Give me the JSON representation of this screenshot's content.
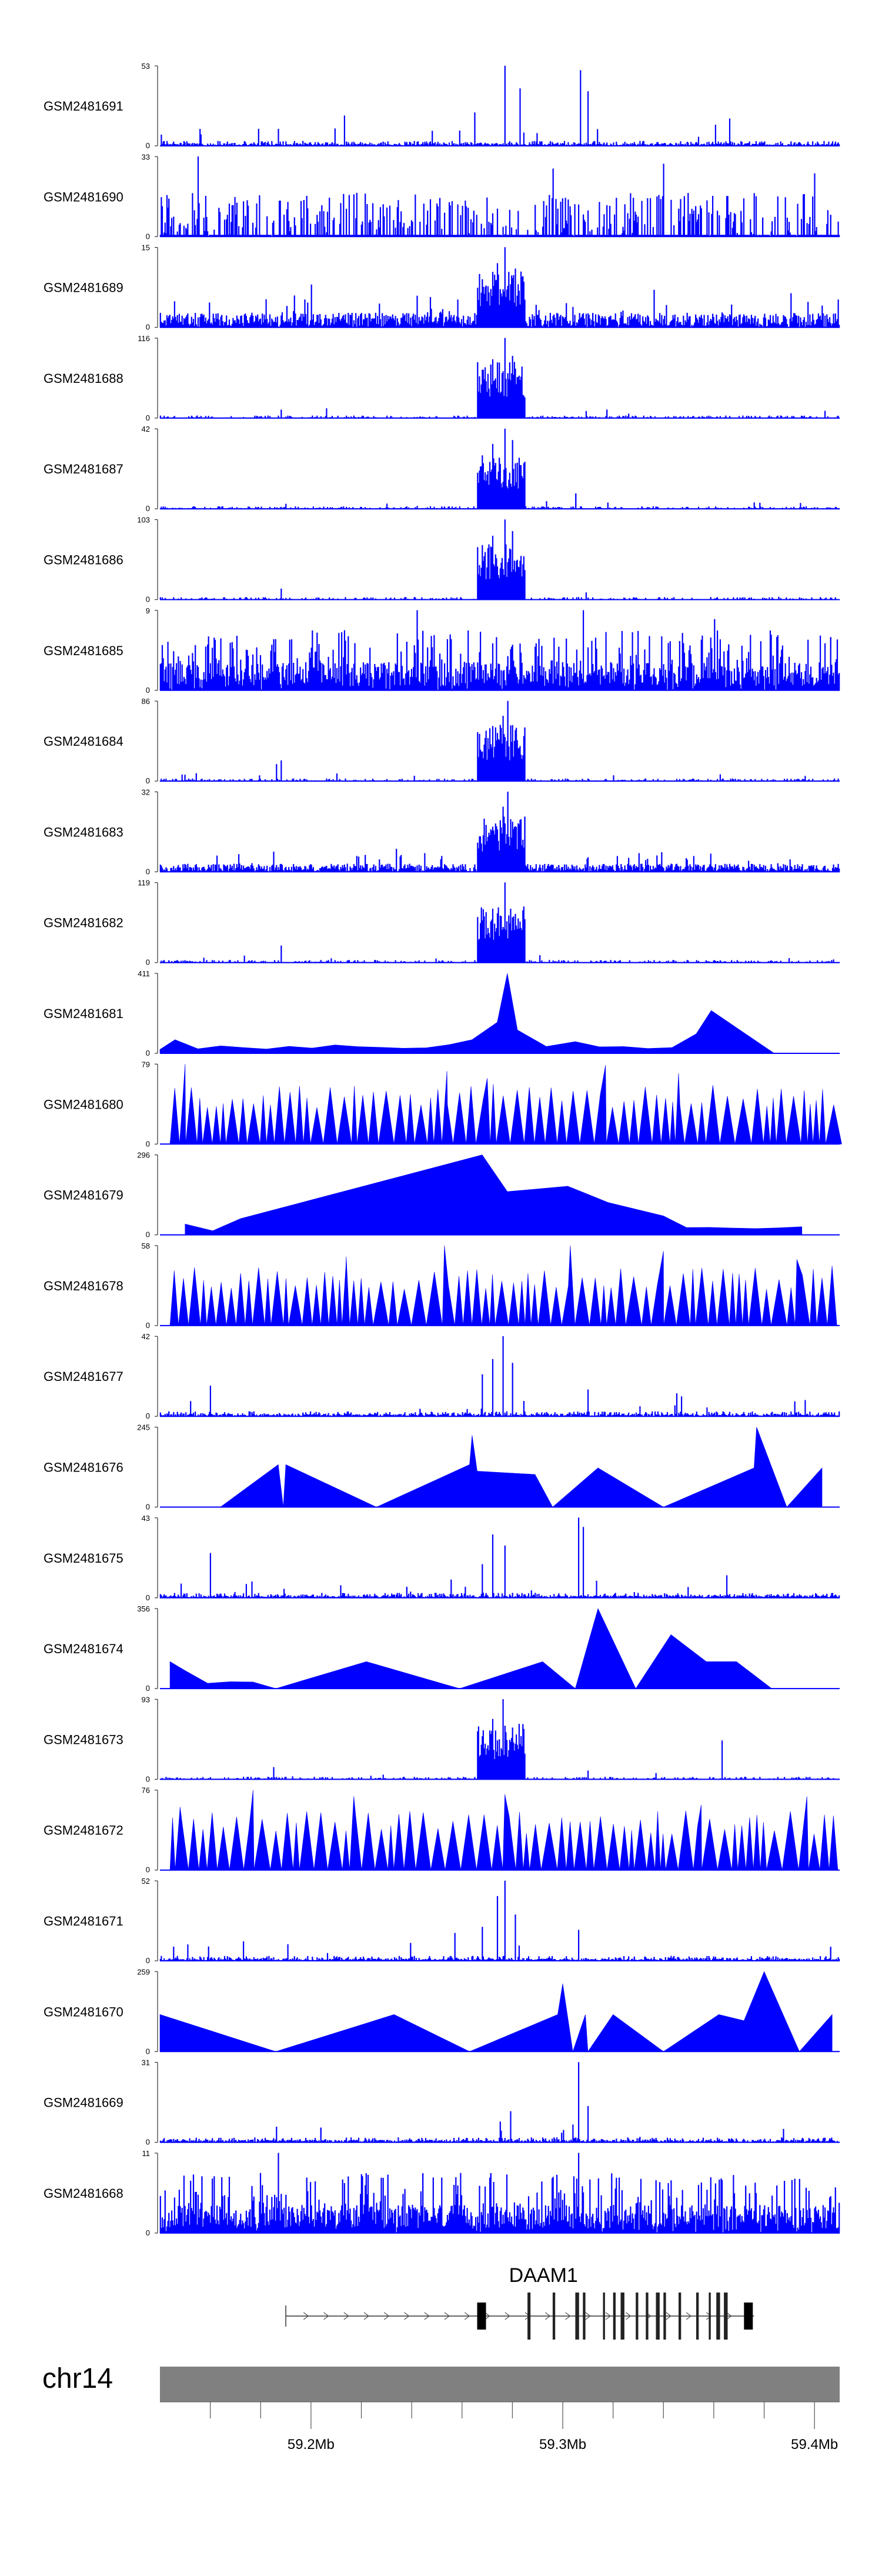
{
  "chart_data": {
    "type": "genome-browser-tracks",
    "x_range": [
      59140000,
      59410000
    ],
    "x_unit": "bp",
    "fill_color": "#0000FF",
    "tracks": [
      {
        "sample": "GSM2481691",
        "ymax": 53,
        "profile": "sparse",
        "seed": 1,
        "peaks": [
          [
            59213000,
            20
          ],
          [
            59265000,
            22
          ],
          [
            59277000,
            53
          ],
          [
            59283000,
            38
          ],
          [
            59307000,
            50
          ],
          [
            59310000,
            36
          ],
          [
            59366000,
            18
          ],
          [
            59259000,
            10
          ]
        ]
      },
      {
        "sample": "GSM2481690",
        "ymax": 33,
        "profile": "spiky",
        "seed": 2,
        "peaks": [
          [
            59155000,
            33
          ],
          [
            59296000,
            28
          ],
          [
            59340000,
            30
          ],
          [
            59400000,
            26
          ]
        ]
      },
      {
        "sample": "GSM2481689",
        "ymax": 15,
        "profile": "cluster",
        "seed": 3,
        "peaks": [
          [
            59200000,
            8
          ],
          [
            59268000,
            9
          ],
          [
            59274000,
            12
          ],
          [
            59277000,
            15
          ],
          [
            59281000,
            11
          ],
          [
            59336000,
            7
          ]
        ]
      },
      {
        "sample": "GSM2481688",
        "ymax": 116,
        "profile": "quiet_cluster",
        "seed": 4,
        "peaks": [
          [
            59188000,
            12
          ],
          [
            59206000,
            14
          ],
          [
            59268000,
            70
          ],
          [
            59272000,
            85
          ],
          [
            59277000,
            116
          ],
          [
            59280000,
            90
          ],
          [
            59283000,
            55
          ],
          [
            59309000,
            10
          ]
        ]
      },
      {
        "sample": "GSM2481687",
        "ymax": 42,
        "profile": "quiet_cluster",
        "seed": 5,
        "peaks": [
          [
            59268000,
            28
          ],
          [
            59272000,
            34
          ],
          [
            59277000,
            42
          ],
          [
            59280000,
            36
          ],
          [
            59283000,
            22
          ],
          [
            59305000,
            8
          ]
        ]
      },
      {
        "sample": "GSM2481686",
        "ymax": 103,
        "profile": "quiet_cluster",
        "seed": 6,
        "peaks": [
          [
            59188000,
            14
          ],
          [
            59268000,
            70
          ],
          [
            59272000,
            82
          ],
          [
            59277000,
            103
          ],
          [
            59280000,
            88
          ],
          [
            59283000,
            50
          ],
          [
            59309000,
            9
          ]
        ]
      },
      {
        "sample": "GSM2481685",
        "ymax": 9,
        "profile": "dense",
        "seed": 7,
        "peaks": [
          [
            59242000,
            9
          ],
          [
            59308000,
            9
          ],
          [
            59360000,
            8
          ]
        ]
      },
      {
        "sample": "GSM2481684",
        "ymax": 86,
        "profile": "quiet_cluster",
        "seed": 8,
        "peaks": [
          [
            59186000,
            18
          ],
          [
            59188000,
            22
          ],
          [
            59210000,
            8
          ],
          [
            59273000,
            30
          ],
          [
            59276000,
            70
          ],
          [
            59278000,
            86
          ],
          [
            59280000,
            60
          ],
          [
            59282000,
            35
          ],
          [
            59320000,
            6
          ]
        ]
      },
      {
        "sample": "GSM2481683",
        "ymax": 32,
        "profile": "noisy_cluster",
        "seed": 9,
        "peaks": [
          [
            59185000,
            8
          ],
          [
            59272000,
            12
          ],
          [
            59276000,
            26
          ],
          [
            59278000,
            32
          ],
          [
            59280000,
            20
          ],
          [
            59283000,
            10
          ]
        ]
      },
      {
        "sample": "GSM2481682",
        "ymax": 119,
        "profile": "quiet_cluster",
        "seed": 10,
        "peaks": [
          [
            59188000,
            25
          ],
          [
            59268000,
            18
          ],
          [
            59274000,
            40
          ],
          [
            59277000,
            119
          ],
          [
            59279000,
            80
          ],
          [
            59282000,
            45
          ]
        ]
      },
      {
        "sample": "GSM2481681",
        "ymax": 411,
        "profile": "sparse_tri",
        "seed": 11,
        "peaks": [
          [
            59140000,
            20
          ],
          [
            59146000,
            70
          ],
          [
            59264000,
            70
          ],
          [
            59274000,
            160
          ],
          [
            59278000,
            411
          ],
          [
            59282000,
            120
          ],
          [
            59305000,
            60
          ],
          [
            59353000,
            100
          ],
          [
            59359000,
            220
          ],
          [
            59384000,
            0
          ]
        ]
      },
      {
        "sample": "GSM2481680",
        "ymax": 79,
        "profile": "tri_dense",
        "seed": 12,
        "peaks": [
          [
            59150000,
            79
          ],
          [
            59254000,
            72
          ],
          [
            59270000,
            65
          ],
          [
            59317000,
            78
          ],
          [
            59346000,
            70
          ]
        ]
      },
      {
        "sample": "GSM2481679",
        "ymax": 296,
        "profile": "sparse_tri",
        "seed": 13,
        "peaks": [
          [
            59150000,
            40
          ],
          [
            59172000,
            60
          ],
          [
            59268000,
            296
          ],
          [
            59278000,
            160
          ],
          [
            59302000,
            180
          ],
          [
            59310000,
            150
          ],
          [
            59318000,
            120
          ],
          [
            59340000,
            70
          ],
          [
            59395000,
            30
          ]
        ]
      },
      {
        "sample": "GSM2481678",
        "ymax": 58,
        "profile": "tri_dense",
        "seed": 14,
        "peaks": [
          [
            59214000,
            50
          ],
          [
            59253000,
            58
          ],
          [
            59303000,
            58
          ],
          [
            59340000,
            54
          ],
          [
            59393000,
            48
          ]
        ]
      },
      {
        "sample": "GSM2481677",
        "ymax": 42,
        "profile": "sparse",
        "seed": 15,
        "peaks": [
          [
            59160000,
            16
          ],
          [
            59268000,
            22
          ],
          [
            59272000,
            30
          ],
          [
            59276000,
            42
          ],
          [
            59280000,
            28
          ],
          [
            59310000,
            14
          ],
          [
            59345000,
            12
          ]
        ]
      },
      {
        "sample": "GSM2481676",
        "ymax": 245,
        "profile": "sparse_tri",
        "seed": 16,
        "peaks": [
          [
            59164000,
            0
          ],
          [
            59187000,
            130
          ],
          [
            59189000,
            0
          ],
          [
            59190000,
            130
          ],
          [
            59226000,
            0
          ],
          [
            59263000,
            130
          ],
          [
            59264000,
            220
          ],
          [
            59266000,
            110
          ],
          [
            59289000,
            100
          ],
          [
            59296000,
            0
          ],
          [
            59314000,
            120
          ],
          [
            59340000,
            0
          ],
          [
            59376000,
            120
          ],
          [
            59377000,
            245
          ],
          [
            59389000,
            0
          ],
          [
            59403000,
            120
          ]
        ]
      },
      {
        "sample": "GSM2481675",
        "ymax": 43,
        "profile": "sparse",
        "seed": 17,
        "peaks": [
          [
            59160000,
            24
          ],
          [
            59268000,
            18
          ],
          [
            59272000,
            34
          ],
          [
            59277000,
            28
          ],
          [
            59306000,
            43
          ],
          [
            59308000,
            38
          ],
          [
            59365000,
            12
          ]
        ]
      },
      {
        "sample": "GSM2481674",
        "ymax": 356,
        "profile": "sparse_tri",
        "seed": 18,
        "peaks": [
          [
            59144000,
            120
          ],
          [
            59150000,
            80
          ],
          [
            59186000,
            0
          ],
          [
            59222000,
            120
          ],
          [
            59259000,
            0
          ],
          [
            59292000,
            120
          ],
          [
            59305000,
            0
          ],
          [
            59314000,
            356
          ],
          [
            59329000,
            0
          ],
          [
            59343000,
            240
          ],
          [
            59357000,
            120
          ],
          [
            59369000,
            120
          ],
          [
            59383000,
            0
          ]
        ]
      },
      {
        "sample": "GSM2481673",
        "ymax": 93,
        "profile": "quiet_cluster",
        "seed": 19,
        "peaks": [
          [
            59185000,
            14
          ],
          [
            59268000,
            40
          ],
          [
            59272000,
            70
          ],
          [
            59276000,
            93
          ],
          [
            59280000,
            60
          ],
          [
            59282000,
            35
          ],
          [
            59310000,
            10
          ],
          [
            59363000,
            45
          ]
        ]
      },
      {
        "sample": "GSM2481672",
        "ymax": 76,
        "profile": "tri_dense",
        "seed": 20,
        "peaks": [
          [
            59148000,
            60
          ],
          [
            59177000,
            76
          ],
          [
            59217000,
            70
          ],
          [
            59277000,
            72
          ],
          [
            59355000,
            62
          ],
          [
            59397000,
            70
          ]
        ]
      },
      {
        "sample": "GSM2481671",
        "ymax": 52,
        "profile": "sparse",
        "seed": 21,
        "peaks": [
          [
            59257000,
            18
          ],
          [
            59268000,
            22
          ],
          [
            59274000,
            42
          ],
          [
            59277000,
            52
          ],
          [
            59281000,
            30
          ],
          [
            59306000,
            20
          ]
        ]
      },
      {
        "sample": "GSM2481670",
        "ymax": 259,
        "profile": "sparse_tri",
        "seed": 22,
        "peaks": [
          [
            59140000,
            120
          ],
          [
            59186000,
            0
          ],
          [
            59233000,
            120
          ],
          [
            59263000,
            0
          ],
          [
            59298000,
            120
          ],
          [
            59300000,
            220
          ],
          [
            59304000,
            0
          ],
          [
            59309000,
            120
          ],
          [
            59310000,
            0
          ],
          [
            59320000,
            120
          ],
          [
            59340000,
            0
          ],
          [
            59362000,
            120
          ],
          [
            59372000,
            100
          ],
          [
            59380000,
            259
          ],
          [
            59394000,
            0
          ],
          [
            59407000,
            120
          ]
        ]
      },
      {
        "sample": "GSM2481669",
        "ymax": 31,
        "profile": "sparse",
        "seed": 23,
        "peaks": [
          [
            59186000,
            6
          ],
          [
            59275000,
            8
          ],
          [
            59279000,
            12
          ],
          [
            59306000,
            31
          ],
          [
            59310000,
            14
          ]
        ]
      },
      {
        "sample": "GSM2481668",
        "ymax": 11,
        "profile": "dense",
        "seed": 24,
        "peaks": [
          [
            59187000,
            11
          ],
          [
            59306000,
            11
          ]
        ]
      }
    ],
    "gene": {
      "name": "DAAM1",
      "strand": "+",
      "start": 59190000,
      "end": 59376000,
      "exons": [
        [
          59266000,
          59269500
        ],
        [
          59286000,
          59287200
        ],
        [
          59296000,
          59297000
        ],
        [
          59305000,
          59306500
        ],
        [
          59308000,
          59309000
        ],
        [
          59316000,
          59316800
        ],
        [
          59320000,
          59321000
        ],
        [
          59323000,
          59324500
        ],
        [
          59329000,
          59330000
        ],
        [
          59333000,
          59334000
        ],
        [
          59337000,
          59338500
        ],
        [
          59340000,
          59341000
        ],
        [
          59346000,
          59347000
        ],
        [
          59353000,
          59354000
        ],
        [
          59358000,
          59358800
        ],
        [
          59361000,
          59362500
        ],
        [
          59364000,
          59365500
        ],
        [
          59372000,
          59375500
        ]
      ]
    },
    "ideogram": {
      "chrom": "chr14",
      "major_ticks": [
        59200000,
        59300000,
        59400000
      ],
      "tick_labels": [
        "59.2Mb",
        "59.3Mb",
        "59.4Mb"
      ],
      "minor_ticks": [
        59160000,
        59180000,
        59220000,
        59240000,
        59260000,
        59280000,
        59320000,
        59340000,
        59360000,
        59380000
      ]
    }
  }
}
